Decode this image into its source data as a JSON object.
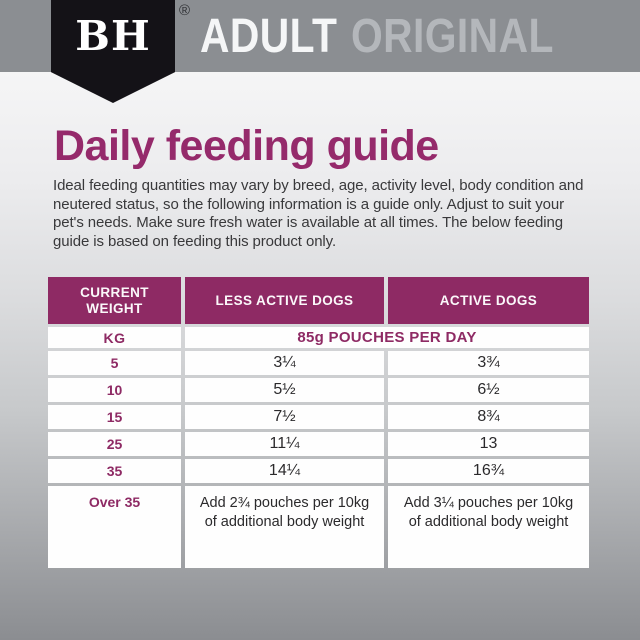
{
  "header": {
    "logo": "BH",
    "registered_mark": "®",
    "product_line": "ADULT",
    "product_variant": "ORIGINAL"
  },
  "page": {
    "title": "Daily feeding guide",
    "intro": "Ideal feeding quantities may vary by breed, age, activity level, body condition and neutered status, so the following information is a guide only. Adjust to suit your pet's needs. Make sure fresh water is available at all times. The below feeding guide is based on feeding this product only."
  },
  "table": {
    "columns": [
      "CURRENT WEIGHT",
      "LESS ACTIVE DOGS",
      "ACTIVE DOGS"
    ],
    "unit_row": {
      "label": "KG",
      "value": "85g POUCHES PER DAY"
    },
    "rows": [
      {
        "weight": "5",
        "less_active": "3¼",
        "active": "3¾"
      },
      {
        "weight": "10",
        "less_active": "5½",
        "active": "6½"
      },
      {
        "weight": "15",
        "less_active": "7½",
        "active": "8¾"
      },
      {
        "weight": "25",
        "less_active": "11¼",
        "active": "13"
      },
      {
        "weight": "35",
        "less_active": "14¼",
        "active": "16¾"
      },
      {
        "weight": "Over 35",
        "less_active": "Add 2¾ pouches per 10kg of additional body weight",
        "active": "Add 3¼ pouches per 10kg of additional body weight"
      }
    ]
  },
  "colors": {
    "brand_purple": "#952a6b",
    "table_header_purple": "#8e2a64",
    "band_gray": "#8b8e92",
    "variant_gray": "#b4b7bb",
    "badge_black": "#141217"
  }
}
